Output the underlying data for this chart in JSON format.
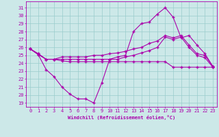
{
  "background_color": "#cce8e8",
  "grid_color": "#99cccc",
  "line_color": "#aa00aa",
  "x_label": "Windchill (Refroidissement éolien,°C)",
  "y_ticks": [
    19,
    20,
    21,
    22,
    23,
    24,
    25,
    26,
    27,
    28,
    29,
    30,
    31
  ],
  "x_ticks": [
    0,
    1,
    2,
    3,
    4,
    5,
    6,
    7,
    8,
    9,
    10,
    11,
    12,
    13,
    14,
    15,
    16,
    17,
    18,
    19,
    20,
    21,
    22,
    23
  ],
  "ylim": [
    18.5,
    31.8
  ],
  "xlim": [
    -0.5,
    23.5
  ],
  "s1_x": [
    0,
    1,
    2,
    3,
    4,
    5,
    6,
    7,
    8,
    9,
    10,
    11,
    12,
    13,
    14,
    15,
    16,
    17,
    18,
    19,
    20,
    21,
    22,
    23
  ],
  "s1_y": [
    25.8,
    25.1,
    23.2,
    22.3,
    21.0,
    20.1,
    19.5,
    19.5,
    19.0,
    21.5,
    24.5,
    24.8,
    25.0,
    28.0,
    29.0,
    29.2,
    30.2,
    31.0,
    29.8,
    27.2,
    27.5,
    26.3,
    25.2,
    23.6
  ],
  "s2_x": [
    0,
    1,
    2,
    3,
    4,
    5,
    6,
    7,
    8,
    9,
    10,
    11,
    12,
    13,
    14,
    15,
    16,
    17,
    18,
    19,
    20,
    21,
    22,
    23
  ],
  "s2_y": [
    25.8,
    25.1,
    24.5,
    24.5,
    24.8,
    24.8,
    24.8,
    24.8,
    25.0,
    25.0,
    25.2,
    25.3,
    25.5,
    25.8,
    26.0,
    26.5,
    26.8,
    27.5,
    27.2,
    27.5,
    26.3,
    25.2,
    25.0,
    23.6
  ],
  "s3_x": [
    0,
    1,
    2,
    3,
    4,
    5,
    6,
    7,
    8,
    9,
    10,
    11,
    12,
    13,
    14,
    15,
    16,
    17,
    18,
    19,
    20,
    21,
    22,
    23
  ],
  "s3_y": [
    25.8,
    25.2,
    24.5,
    24.5,
    24.5,
    24.5,
    24.5,
    24.5,
    24.5,
    24.5,
    24.5,
    24.5,
    24.8,
    25.0,
    25.3,
    25.6,
    26.0,
    27.3,
    27.0,
    27.3,
    26.0,
    25.0,
    24.7,
    23.5
  ],
  "s4_x": [
    0,
    1,
    2,
    3,
    4,
    5,
    6,
    7,
    8,
    9,
    10,
    11,
    12,
    13,
    14,
    15,
    16,
    17,
    18,
    19,
    20,
    21,
    22,
    23
  ],
  "s4_y": [
    25.8,
    25.2,
    24.5,
    24.5,
    24.3,
    24.2,
    24.2,
    24.2,
    24.2,
    24.2,
    24.2,
    24.2,
    24.2,
    24.2,
    24.2,
    24.2,
    24.2,
    24.2,
    23.5,
    23.5,
    23.5,
    23.5,
    23.5,
    23.5
  ]
}
